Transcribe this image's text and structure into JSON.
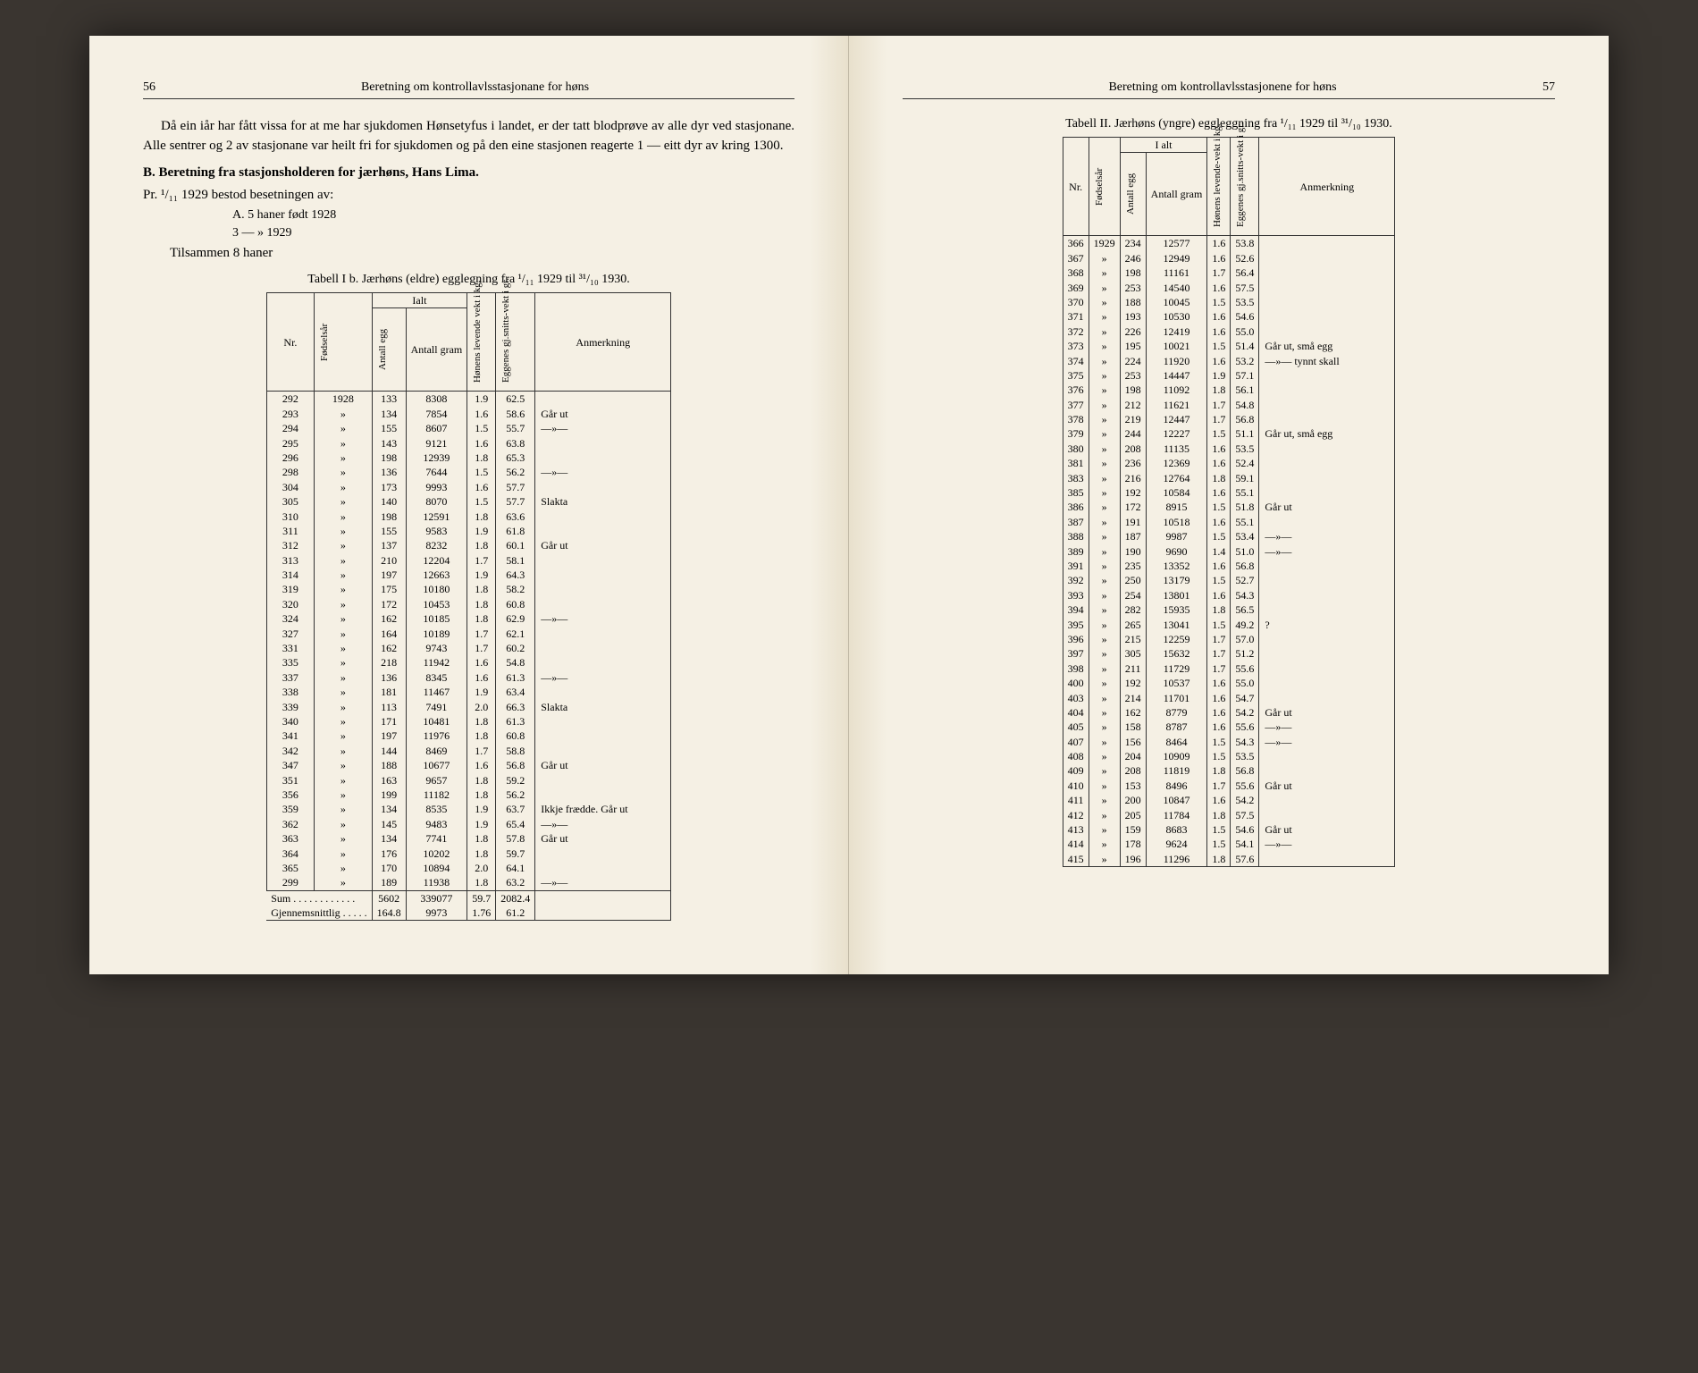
{
  "left": {
    "page_number": "56",
    "running_head": "Beretning om kontrollavlsstasjonane for høns",
    "para1": "Då ein iår har fått vissa for at me har sjukdomen Hønsetyfus i landet, er der tatt blodprøve av alle dyr ved stasjonane. Alle sentrer og 2 av stasjonane var heilt fri for sjukdomen og på den eine stasjonen reagerte 1 — eitt dyr av kring 1300.",
    "section_b": "B.  Beretning fra stasjonsholderen for jærhøns, Hans Lima.",
    "line_pr": "Pr. ¹/₁₁ 1929 bestod besetningen av:",
    "list_a": "A.    5 haner født 1928",
    "list_b": "       3    —      »   1929",
    "list_sum": "Tilsammen    8 haner",
    "table1_caption": "Tabell I b.  Jærhøns (eldre) egglegning fra ¹/₁₁ 1929 til ³¹/₁₀ 1930.",
    "col_nr": "Nr.",
    "col_year": "Fødselsår",
    "col_ialt": "Ialt",
    "col_eggs": "Antall egg",
    "col_gram": "Antall gram",
    "col_weight": "Hønens levende vekt i kg.",
    "col_eggw": "Eggenes gj.snitts-vekt i gr.",
    "col_note": "Anmerkning",
    "rows": [
      [
        "292",
        "1928",
        "133",
        "8308",
        "1.9",
        "62.5",
        ""
      ],
      [
        "293",
        "»",
        "134",
        "7854",
        "1.6",
        "58.6",
        "Går ut"
      ],
      [
        "294",
        "»",
        "155",
        "8607",
        "1.5",
        "55.7",
        "—»—"
      ],
      [
        "295",
        "»",
        "143",
        "9121",
        "1.6",
        "63.8",
        ""
      ],
      [
        "296",
        "»",
        "198",
        "12939",
        "1.8",
        "65.3",
        ""
      ],
      [
        "298",
        "»",
        "136",
        "7644",
        "1.5",
        "56.2",
        "—»—"
      ],
      [
        "304",
        "»",
        "173",
        "9993",
        "1.6",
        "57.7",
        ""
      ],
      [
        "305",
        "»",
        "140",
        "8070",
        "1.5",
        "57.7",
        "Slakta"
      ],
      [
        "310",
        "»",
        "198",
        "12591",
        "1.8",
        "63.6",
        ""
      ],
      [
        "311",
        "»",
        "155",
        "9583",
        "1.9",
        "61.8",
        ""
      ],
      [
        "312",
        "»",
        "137",
        "8232",
        "1.8",
        "60.1",
        "Går ut"
      ],
      [
        "313",
        "»",
        "210",
        "12204",
        "1.7",
        "58.1",
        ""
      ],
      [
        "314",
        "»",
        "197",
        "12663",
        "1.9",
        "64.3",
        ""
      ],
      [
        "319",
        "»",
        "175",
        "10180",
        "1.8",
        "58.2",
        ""
      ],
      [
        "320",
        "»",
        "172",
        "10453",
        "1.8",
        "60.8",
        ""
      ],
      [
        "324",
        "»",
        "162",
        "10185",
        "1.8",
        "62.9",
        "—»—"
      ],
      [
        "327",
        "»",
        "164",
        "10189",
        "1.7",
        "62.1",
        ""
      ],
      [
        "331",
        "»",
        "162",
        "9743",
        "1.7",
        "60.2",
        ""
      ],
      [
        "335",
        "»",
        "218",
        "11942",
        "1.6",
        "54.8",
        ""
      ],
      [
        "337",
        "»",
        "136",
        "8345",
        "1.6",
        "61.3",
        "—»—"
      ],
      [
        "338",
        "»",
        "181",
        "11467",
        "1.9",
        "63.4",
        ""
      ],
      [
        "339",
        "»",
        "113",
        "7491",
        "2.0",
        "66.3",
        "Slakta"
      ],
      [
        "340",
        "»",
        "171",
        "10481",
        "1.8",
        "61.3",
        ""
      ],
      [
        "341",
        "»",
        "197",
        "11976",
        "1.8",
        "60.8",
        ""
      ],
      [
        "342",
        "»",
        "144",
        "8469",
        "1.7",
        "58.8",
        ""
      ],
      [
        "347",
        "»",
        "188",
        "10677",
        "1.6",
        "56.8",
        "Går ut"
      ],
      [
        "351",
        "»",
        "163",
        "9657",
        "1.8",
        "59.2",
        ""
      ],
      [
        "356",
        "»",
        "199",
        "11182",
        "1.8",
        "56.2",
        ""
      ],
      [
        "359",
        "»",
        "134",
        "8535",
        "1.9",
        "63.7",
        "Ikkje frædde. Går ut"
      ],
      [
        "362",
        "»",
        "145",
        "9483",
        "1.9",
        "65.4",
        "—»—"
      ],
      [
        "363",
        "»",
        "134",
        "7741",
        "1.8",
        "57.8",
        "Går ut"
      ],
      [
        "364",
        "»",
        "176",
        "10202",
        "1.8",
        "59.7",
        ""
      ],
      [
        "365",
        "»",
        "170",
        "10894",
        "2.0",
        "64.1",
        ""
      ],
      [
        "299",
        "»",
        "189",
        "11938",
        "1.8",
        "63.2",
        "—»—"
      ]
    ],
    "sum_label": "Sum . . . . . . . . . . . .",
    "sum": [
      "5602",
      "339077",
      "59.7",
      "2082.4"
    ],
    "avg_label": "Gjennemsnittlig . . . . .",
    "avg": [
      "164.8",
      "9973",
      "1.76",
      "61.2"
    ]
  },
  "right": {
    "page_number": "57",
    "running_head": "Beretning om kontrollavlsstasjonene for høns",
    "table2_caption": "Tabell II. Jærhøns (yngre) eggleggning fra ¹/₁₁ 1929 til ³¹/₁₀ 1930.",
    "col_nr": "Nr.",
    "col_year": "Fødselsår",
    "col_ialt": "I alt",
    "col_eggs": "Antall egg",
    "col_gram": "Antall gram",
    "col_weight": "Hønens levende-vekt i kg.",
    "col_eggw": "Eggenes gj.snitts-vekt i gr.",
    "col_note": "Anmerkning",
    "rows": [
      [
        "366",
        "1929",
        "234",
        "12577",
        "1.6",
        "53.8",
        ""
      ],
      [
        "367",
        "»",
        "246",
        "12949",
        "1.6",
        "52.6",
        ""
      ],
      [
        "368",
        "»",
        "198",
        "11161",
        "1.7",
        "56.4",
        ""
      ],
      [
        "369",
        "»",
        "253",
        "14540",
        "1.6",
        "57.5",
        ""
      ],
      [
        "370",
        "»",
        "188",
        "10045",
        "1.5",
        "53.5",
        ""
      ],
      [
        "371",
        "»",
        "193",
        "10530",
        "1.6",
        "54.6",
        ""
      ],
      [
        "372",
        "»",
        "226",
        "12419",
        "1.6",
        "55.0",
        ""
      ],
      [
        "373",
        "»",
        "195",
        "10021",
        "1.5",
        "51.4",
        "Går ut, små egg"
      ],
      [
        "374",
        "»",
        "224",
        "11920",
        "1.6",
        "53.2",
        "—»—   tynnt skall"
      ],
      [
        "375",
        "»",
        "253",
        "14447",
        "1.9",
        "57.1",
        ""
      ],
      [
        "376",
        "»",
        "198",
        "11092",
        "1.8",
        "56.1",
        ""
      ],
      [
        "377",
        "»",
        "212",
        "11621",
        "1.7",
        "54.8",
        ""
      ],
      [
        "378",
        "»",
        "219",
        "12447",
        "1.7",
        "56.8",
        ""
      ],
      [
        "379",
        "»",
        "244",
        "12227",
        "1.5",
        "51.1",
        "Går ut, små egg"
      ],
      [
        "380",
        "»",
        "208",
        "11135",
        "1.6",
        "53.5",
        ""
      ],
      [
        "381",
        "»",
        "236",
        "12369",
        "1.6",
        "52.4",
        ""
      ],
      [
        "383",
        "»",
        "216",
        "12764",
        "1.8",
        "59.1",
        ""
      ],
      [
        "385",
        "»",
        "192",
        "10584",
        "1.6",
        "55.1",
        ""
      ],
      [
        "386",
        "»",
        "172",
        "8915",
        "1.5",
        "51.8",
        "Går ut"
      ],
      [
        "387",
        "»",
        "191",
        "10518",
        "1.6",
        "55.1",
        ""
      ],
      [
        "388",
        "»",
        "187",
        "9987",
        "1.5",
        "53.4",
        "—»—"
      ],
      [
        "389",
        "»",
        "190",
        "9690",
        "1.4",
        "51.0",
        "—»—"
      ],
      [
        "391",
        "»",
        "235",
        "13352",
        "1.6",
        "56.8",
        ""
      ],
      [
        "392",
        "»",
        "250",
        "13179",
        "1.5",
        "52.7",
        ""
      ],
      [
        "393",
        "»",
        "254",
        "13801",
        "1.6",
        "54.3",
        ""
      ],
      [
        "394",
        "»",
        "282",
        "15935",
        "1.8",
        "56.5",
        ""
      ],
      [
        "395",
        "»",
        "265",
        "13041",
        "1.5",
        "49.2",
        "?"
      ],
      [
        "396",
        "»",
        "215",
        "12259",
        "1.7",
        "57.0",
        ""
      ],
      [
        "397",
        "»",
        "305",
        "15632",
        "1.7",
        "51.2",
        ""
      ],
      [
        "398",
        "»",
        "211",
        "11729",
        "1.7",
        "55.6",
        ""
      ],
      [
        "400",
        "»",
        "192",
        "10537",
        "1.6",
        "55.0",
        ""
      ],
      [
        "403",
        "»",
        "214",
        "11701",
        "1.6",
        "54.7",
        ""
      ],
      [
        "404",
        "»",
        "162",
        "8779",
        "1.6",
        "54.2",
        "Går ut"
      ],
      [
        "405",
        "»",
        "158",
        "8787",
        "1.6",
        "55.6",
        "—»—"
      ],
      [
        "407",
        "»",
        "156",
        "8464",
        "1.5",
        "54.3",
        "—»—"
      ],
      [
        "408",
        "»",
        "204",
        "10909",
        "1.5",
        "53.5",
        ""
      ],
      [
        "409",
        "»",
        "208",
        "11819",
        "1.8",
        "56.8",
        ""
      ],
      [
        "410",
        "»",
        "153",
        "8496",
        "1.7",
        "55.6",
        "Går ut"
      ],
      [
        "411",
        "»",
        "200",
        "10847",
        "1.6",
        "54.2",
        ""
      ],
      [
        "412",
        "»",
        "205",
        "11784",
        "1.8",
        "57.5",
        ""
      ],
      [
        "413",
        "»",
        "159",
        "8683",
        "1.5",
        "54.6",
        "Går ut"
      ],
      [
        "414",
        "»",
        "178",
        "9624",
        "1.5",
        "54.1",
        "—»—"
      ],
      [
        "415",
        "»",
        "196",
        "11296",
        "1.8",
        "57.6",
        ""
      ]
    ]
  }
}
